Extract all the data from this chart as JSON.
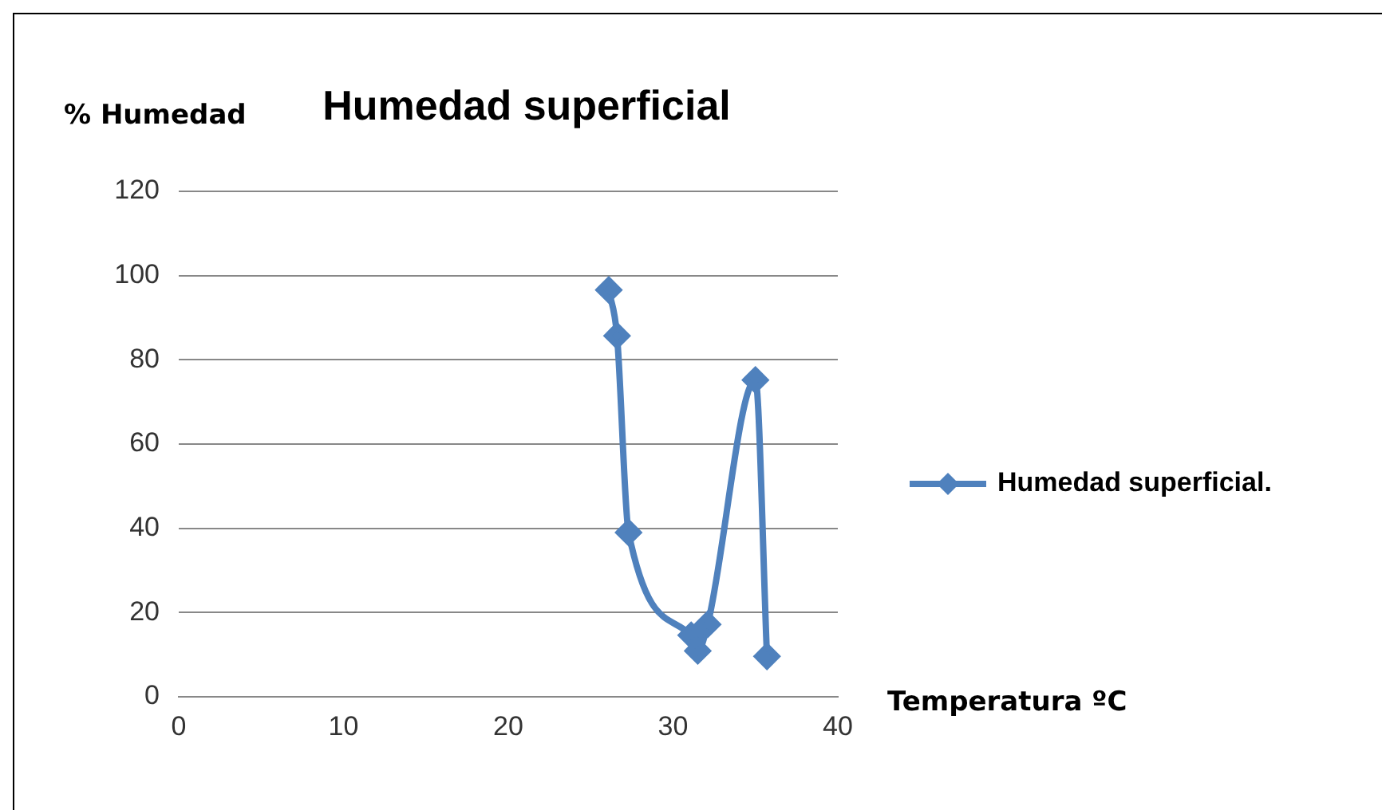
{
  "chart_data": {
    "type": "line",
    "title": "Humedad superficial",
    "xlabel": "Temperatura ºC",
    "ylabel": "% Humedad",
    "x": [
      26.1,
      26.6,
      27.3,
      31.1,
      31.5,
      32.1,
      35.0,
      35.7
    ],
    "series": [
      {
        "name": "Humedad superficial.",
        "color": "#4f81bd",
        "values": [
          96.6,
          85.7,
          39,
          14.6,
          10.9,
          17.2,
          75.2,
          9.6
        ]
      }
    ],
    "xlim": [
      0,
      40
    ],
    "xticks": [
      0,
      10,
      20,
      30,
      40
    ],
    "ylim": [
      0,
      120
    ],
    "yticks": [
      0,
      20,
      40,
      60,
      80,
      100,
      120
    ],
    "grid": "y",
    "legend": "right",
    "marker": "diamond",
    "line_style": "solid"
  }
}
